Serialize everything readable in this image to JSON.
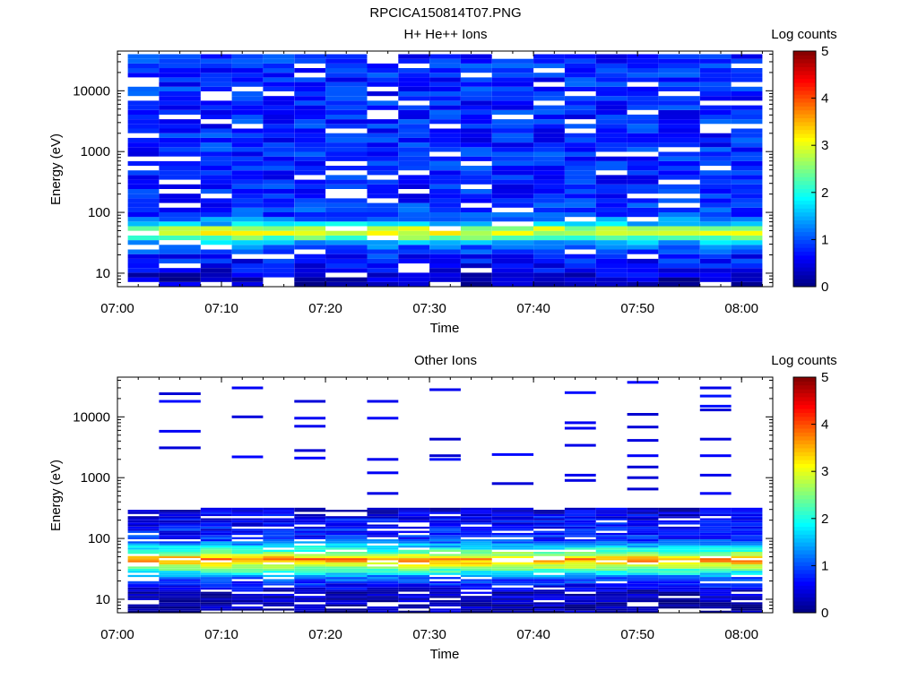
{
  "figure_title": "RPCICA150814T07.PNG",
  "chart_data": [
    {
      "type": "heatmap",
      "title": "H+ He++ Ions",
      "xlabel": "Time",
      "ylabel": "Energy (eV)",
      "y_scale": "log",
      "ylim": [
        6,
        45000
      ],
      "xlim": [
        "07:00",
        "08:03"
      ],
      "x_tick_labels": [
        "07:00",
        "07:10",
        "07:20",
        "07:30",
        "07:40",
        "07:50",
        "08:00"
      ],
      "y_tick_labels": [
        "10",
        "100",
        "1000",
        "10000"
      ],
      "time_bins_start": [
        "07:01",
        "07:04",
        "07:08",
        "07:11",
        "07:14",
        "07:17",
        "07:20",
        "07:24",
        "07:27",
        "07:30",
        "07:33",
        "07:36",
        "07:40",
        "07:43",
        "07:46",
        "07:49",
        "07:52",
        "07:56",
        "07:59"
      ],
      "time_bins_end": [
        "07:04",
        "07:08",
        "07:11",
        "07:14",
        "07:17",
        "07:20",
        "07:24",
        "07:27",
        "07:30",
        "07:33",
        "07:36",
        "07:40",
        "07:43",
        "07:46",
        "07:49",
        "07:52",
        "07:56",
        "07:59",
        "08:02"
      ],
      "colorbar": {
        "label": "Log counts",
        "range": [
          0,
          5
        ],
        "ticks": [
          "0",
          "1",
          "2",
          "3",
          "4",
          "5"
        ]
      },
      "profile": {
        "energies": [
          7,
          12,
          20,
          30,
          40,
          50,
          65,
          90,
          200,
          1000,
          5000,
          20000,
          40000
        ],
        "log_counts": [
          0.3,
          0.6,
          0.8,
          1.2,
          2.6,
          3.2,
          1.6,
          0.9,
          0.8,
          0.8,
          0.8,
          0.8,
          0.8
        ]
      }
    },
    {
      "type": "heatmap",
      "title": "Other Ions",
      "xlabel": "Time",
      "ylabel": "Energy (eV)",
      "y_scale": "log",
      "ylim": [
        6,
        45000
      ],
      "xlim": [
        "07:00",
        "08:03"
      ],
      "x_tick_labels": [
        "07:00",
        "07:10",
        "07:20",
        "07:30",
        "07:40",
        "07:50",
        "08:00"
      ],
      "y_tick_labels": [
        "10",
        "100",
        "1000",
        "10000"
      ],
      "time_bins_start": [
        "07:01",
        "07:04",
        "07:08",
        "07:11",
        "07:14",
        "07:17",
        "07:20",
        "07:24",
        "07:27",
        "07:30",
        "07:33",
        "07:36",
        "07:40",
        "07:43",
        "07:46",
        "07:49",
        "07:52",
        "07:56",
        "07:59"
      ],
      "time_bins_end": [
        "07:04",
        "07:08",
        "07:11",
        "07:14",
        "07:17",
        "07:20",
        "07:24",
        "07:27",
        "07:30",
        "07:33",
        "07:36",
        "07:40",
        "07:43",
        "07:46",
        "07:49",
        "07:52",
        "07:56",
        "07:59",
        "08:02"
      ],
      "colorbar": {
        "label": "Log counts",
        "range": [
          0,
          5
        ],
        "ticks": [
          "0",
          "1",
          "2",
          "3",
          "4",
          "5"
        ]
      },
      "profile": {
        "energies": [
          8,
          14,
          22,
          28,
          35,
          45,
          55,
          70,
          100,
          200,
          300
        ],
        "log_counts": [
          0.2,
          0.4,
          1.0,
          2.0,
          2.8,
          3.8,
          2.6,
          1.8,
          0.8,
          0.6,
          0.4
        ]
      },
      "sparse_lines": [
        {
          "time": "07:06",
          "energies": [
            3100,
            5800,
            18000,
            24000
          ]
        },
        {
          "time": "07:13",
          "energies": [
            2200,
            10000,
            30000
          ]
        },
        {
          "time": "07:19",
          "energies": [
            2100,
            2800,
            7000,
            9500,
            18000
          ]
        },
        {
          "time": "07:25",
          "energies": [
            550,
            1200,
            2000,
            9500,
            18000
          ]
        },
        {
          "time": "07:31",
          "energies": [
            2000,
            2300,
            4300,
            28000
          ]
        },
        {
          "time": "07:38",
          "energies": [
            800,
            2400
          ]
        },
        {
          "time": "07:44",
          "energies": [
            900,
            1100,
            3400,
            6500,
            8000,
            25000
          ]
        },
        {
          "time": "07:50",
          "energies": [
            650,
            1000,
            1500,
            2300,
            4100,
            6800,
            11000,
            37000
          ]
        },
        {
          "time": "07:57",
          "energies": [
            550,
            1100,
            2300,
            4300,
            13000,
            15000,
            22000,
            30000
          ]
        }
      ]
    }
  ]
}
